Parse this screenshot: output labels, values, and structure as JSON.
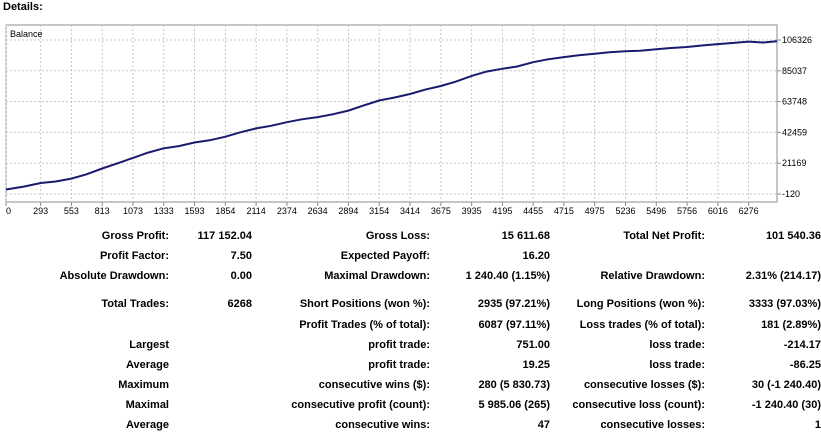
{
  "header": {
    "title": "Details:"
  },
  "chart_data": {
    "type": "line",
    "title": "Balance",
    "x_ticks": [
      "0",
      "293",
      "553",
      "813",
      "1073",
      "1333",
      "1593",
      "1854",
      "2114",
      "2374",
      "2634",
      "2894",
      "3154",
      "3414",
      "3675",
      "3935",
      "4195",
      "4455",
      "4715",
      "4975",
      "5236",
      "5496",
      "5756",
      "6016",
      "6276"
    ],
    "y_ticks": [
      "106326",
      "85037",
      "63748",
      "42459",
      "21169",
      "-120"
    ],
    "ylim": [
      -120,
      106326
    ],
    "xlim": [
      0,
      6516
    ],
    "series": [
      {
        "x": [
          0,
          150,
          293,
          420,
          553,
          680,
          813,
          940,
          1073,
          1200,
          1333,
          1460,
          1593,
          1720,
          1854,
          1980,
          2114,
          2240,
          2374,
          2500,
          2634,
          2760,
          2894,
          3020,
          3154,
          3280,
          3414,
          3540,
          3675,
          3800,
          3935,
          4060,
          4195,
          4320,
          4455,
          4580,
          4715,
          4840,
          4975,
          5100,
          5236,
          5360,
          5496,
          5620,
          5756,
          5880,
          6016,
          6150,
          6276,
          6400,
          6516
        ],
        "y": [
          3000,
          5000,
          7500,
          8500,
          10500,
          13500,
          17500,
          21000,
          24800,
          28500,
          31500,
          33000,
          35500,
          37000,
          39500,
          42500,
          45200,
          47000,
          49500,
          51500,
          53000,
          55000,
          57500,
          61000,
          64500,
          66500,
          69000,
          72000,
          74500,
          77500,
          81500,
          84500,
          86500,
          88000,
          91000,
          93000,
          94500,
          95800,
          96800,
          97800,
          98500,
          98900,
          100000,
          100800,
          101500,
          102500,
          103500,
          104300,
          105200,
          104600,
          105400
        ]
      }
    ],
    "grid": true,
    "legend": "none"
  },
  "stats": {
    "row1": {
      "l1": "Gross Profit:",
      "v1": "117 152.04",
      "l2": "Gross Loss:",
      "v2": "15 611.68",
      "l3": "Total Net Profit:",
      "v3": "101 540.36"
    },
    "row2": {
      "l1": "Profit Factor:",
      "v1": "7.50",
      "l2": "Expected Payoff:",
      "v2": "16.20"
    },
    "row3": {
      "l1": "Absolute Drawdown:",
      "v1": "0.00",
      "l2": "Maximal Drawdown:",
      "v2": "1 240.40 (1.15%)",
      "l3": "Relative Drawdown:",
      "v3": "2.31% (214.17)"
    },
    "row4": {
      "l1": "Total Trades:",
      "v1": "6268",
      "l2": "Short Positions (won %):",
      "v2": "2935 (97.21%)",
      "l3": "Long Positions (won %):",
      "v3": "3333 (97.03%)"
    },
    "row5": {
      "l2": "Profit Trades (% of total):",
      "v2": "6087 (97.11%)",
      "l3": "Loss trades (% of total):",
      "v3": "181 (2.89%)"
    },
    "row6": {
      "l1": "Largest",
      "l2": "profit trade:",
      "v2": "751.00",
      "l3": "loss trade:",
      "v3": "-214.17"
    },
    "row7": {
      "l1": "Average",
      "l2": "profit trade:",
      "v2": "19.25",
      "l3": "loss trade:",
      "v3": "-86.25"
    },
    "row8": {
      "l1": "Maximum",
      "l2": "consecutive wins ($):",
      "v2": "280 (5 830.73)",
      "l3": "consecutive losses ($):",
      "v3": "30 (-1 240.40)"
    },
    "row9": {
      "l1": "Maximal",
      "l2": "consecutive profit (count):",
      "v2": "5 985.06 (265)",
      "l3": "consecutive loss (count):",
      "v3": "-1 240.40 (30)"
    },
    "row10": {
      "l1": "Average",
      "l2": "consecutive wins:",
      "v2": "47",
      "l3": "consecutive losses:",
      "v3": "1"
    }
  }
}
